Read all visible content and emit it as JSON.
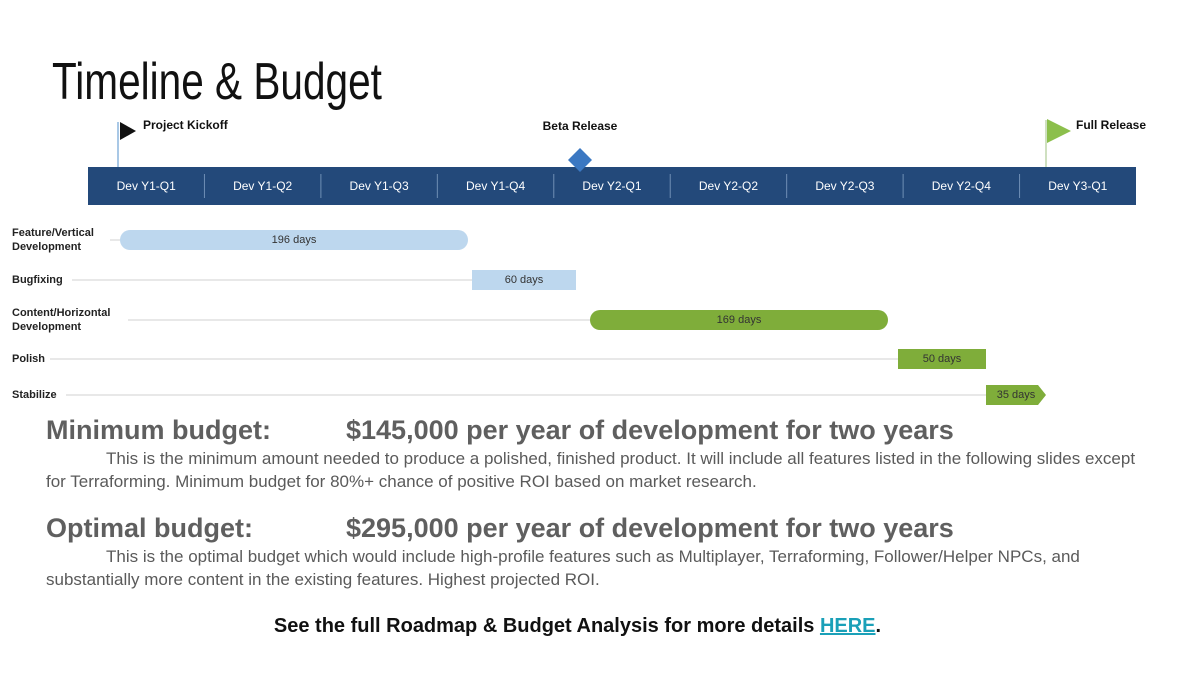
{
  "header": {
    "title": "Timeline & Budget"
  },
  "milestones": [
    {
      "label": "Project Kickoff"
    },
    {
      "label": "Beta Release"
    },
    {
      "label": "Full Release"
    }
  ],
  "quarters": [
    "Dev Y1-Q1",
    "Dev Y1-Q2",
    "Dev Y1-Q3",
    "Dev Y1-Q4",
    "Dev Y2-Q1",
    "Dev Y2-Q2",
    "Dev Y2-Q3",
    "Dev Y2-Q4",
    "Dev Y3-Q1"
  ],
  "tasks": [
    {
      "label": "Feature/Vertical Development",
      "duration": "196 days"
    },
    {
      "label": "Bugfixing",
      "duration": "60 days"
    },
    {
      "label": "Content/Horizontal Development",
      "duration": "169 days"
    },
    {
      "label": "Polish",
      "duration": "50 days"
    },
    {
      "label": "Stabilize",
      "duration": "35 days"
    }
  ],
  "budgets": [
    {
      "heading": "Minimum budget:",
      "amount": "$145,000 per year of development for two years",
      "text": "This is the minimum amount needed to produce a polished, finished product. It will include all features listed in the following slides except for Terraforming. Minimum budget for 80%+ chance of positive ROI based on market research."
    },
    {
      "heading": "Optimal budget:",
      "amount": "$295,000 per year of development for two years",
      "text": "This is the optimal budget which would include high-profile features such as Multiplayer, Terraforming, Follower/Helper NPCs, and substantially more content in the existing features. Highest projected ROI."
    }
  ],
  "footer": {
    "text": "See the full Roadmap & Budget Analysis for more details ",
    "link": "HERE",
    "end": "."
  }
}
